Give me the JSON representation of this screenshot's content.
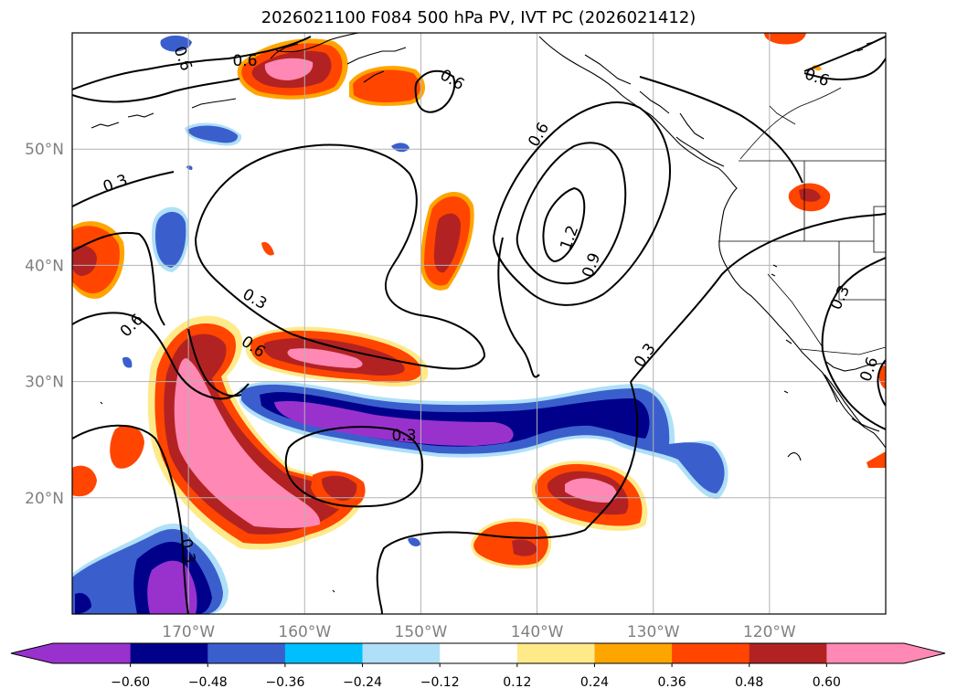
{
  "title": "2026021100 F084 500 hPa PV, IVT PC (2026021412)",
  "map": {
    "projection": "cylindrical",
    "lon_range": [
      -180,
      -110
    ],
    "lat_range": [
      10,
      60
    ],
    "gridlines": true,
    "lat_ticks": [
      {
        "value": 20,
        "label": "20°N"
      },
      {
        "value": 30,
        "label": "30°N"
      },
      {
        "value": 40,
        "label": "40°N"
      },
      {
        "value": 50,
        "label": "50°N"
      }
    ],
    "lon_ticks": [
      {
        "value": -170,
        "label": "170°W"
      },
      {
        "value": -160,
        "label": "160°W"
      },
      {
        "value": -150,
        "label": "150°W"
      },
      {
        "value": -140,
        "label": "140°W"
      },
      {
        "value": -130,
        "label": "130°W"
      },
      {
        "value": -120,
        "label": "120°W"
      }
    ],
    "tick_label_color": "#808080"
  },
  "colorbar": {
    "extend": "both",
    "colors": [
      "#9932cc",
      "#00008b",
      "#3a5fcd",
      "#00bfff",
      "#afe0f8",
      "#ffffff",
      "#ffea8a",
      "#ffa500",
      "#ff4500",
      "#b22222",
      "#ff88b4"
    ],
    "ticks": [
      "−0.60",
      "−0.48",
      "−0.36",
      "−0.24",
      "−0.12",
      "0.12",
      "0.24",
      "0.36",
      "0.48",
      "0.60"
    ]
  },
  "contour_labels": [
    "0.6",
    "0.6",
    "0.6",
    "0.6",
    "0.3",
    "0.6",
    "1.2",
    "0.9",
    "0.3",
    "0.6",
    "0.3",
    "0.6",
    "0.3",
    "0.3",
    "0.6",
    "0.3"
  ]
}
